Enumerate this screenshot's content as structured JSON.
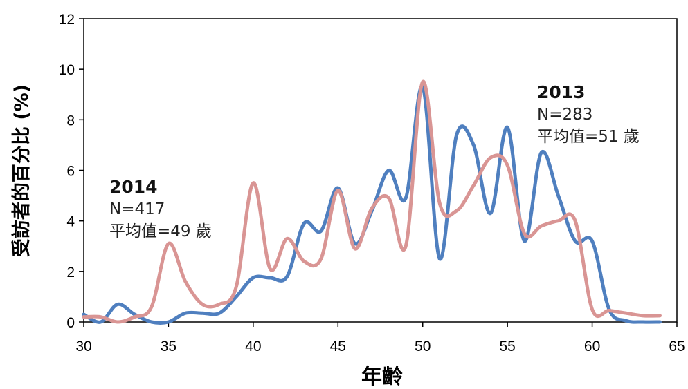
{
  "colors": {
    "series_2013": "#4f7fbf",
    "series_2014": "#d99594",
    "axis": "#000000"
  },
  "chart_data": {
    "type": "line",
    "xlabel": "年齡",
    "ylabel": "受訪者的百分比 (%)",
    "xlim": [
      30,
      65
    ],
    "ylim": [
      0,
      12
    ],
    "xticks": [
      30,
      35,
      40,
      45,
      50,
      55,
      60,
      65
    ],
    "yticks": [
      0,
      2,
      4,
      6,
      8,
      10,
      12
    ],
    "grid": false,
    "series": [
      {
        "name": "2013",
        "color": "#4f7fbf",
        "x": [
          30,
          31,
          32,
          33,
          34,
          35,
          36,
          37,
          38,
          39,
          40,
          41,
          42,
          43,
          44,
          45,
          46,
          47,
          48,
          49,
          50,
          51,
          52,
          53,
          54,
          55,
          56,
          57,
          58,
          59,
          60,
          61,
          62,
          63,
          64
        ],
        "values": [
          0.3,
          0.0,
          0.7,
          0.3,
          0.0,
          0.0,
          0.35,
          0.35,
          0.35,
          1.0,
          1.75,
          1.75,
          1.8,
          3.9,
          3.6,
          5.3,
          3.1,
          4.4,
          6.0,
          4.9,
          9.3,
          2.5,
          7.4,
          7.0,
          4.3,
          7.7,
          3.2,
          6.7,
          5.0,
          3.2,
          3.2,
          0.5,
          0.05,
          0.0,
          0.0
        ]
      },
      {
        "name": "2014",
        "color": "#d99594",
        "x": [
          30,
          31,
          32,
          33,
          34,
          35,
          36,
          37,
          38,
          39,
          40,
          41,
          42,
          43,
          44,
          45,
          46,
          47,
          48,
          49,
          50,
          51,
          52,
          53,
          54,
          55,
          56,
          57,
          58,
          59,
          60,
          61,
          62,
          63,
          64
        ],
        "values": [
          0.2,
          0.2,
          0.0,
          0.2,
          0.6,
          3.1,
          1.6,
          0.7,
          0.7,
          1.4,
          5.5,
          2.1,
          3.3,
          2.4,
          2.5,
          5.2,
          2.9,
          4.5,
          4.9,
          3.0,
          9.5,
          4.7,
          4.4,
          5.4,
          6.5,
          6.2,
          3.5,
          3.8,
          4.0,
          4.0,
          0.5,
          0.45,
          0.35,
          0.25,
          0.25
        ]
      }
    ],
    "annotations": [
      {
        "year": "2014",
        "n": "N=417",
        "mean": "平均值=49 歲"
      },
      {
        "year": "2013",
        "n": "N=283",
        "mean": "平均值=51 歲"
      }
    ]
  }
}
